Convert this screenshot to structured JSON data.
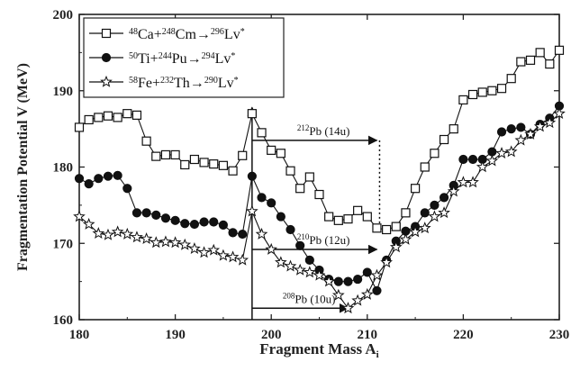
{
  "chart_data": {
    "type": "line",
    "xlabel": "Fragment Mass A",
    "xlabel_sub": "i",
    "ylabel": "Fragmentation Potential V (MeV)",
    "xlim": [
      180,
      230
    ],
    "ylim": [
      160,
      200
    ],
    "xticks": [
      180,
      190,
      200,
      210,
      220,
      230
    ],
    "yticks": [
      160,
      170,
      180,
      190,
      200
    ],
    "grid": false,
    "legend_position": "top-left",
    "series": [
      {
        "name": "48Ca+248Cm→296Lv*",
        "legend": [
          {
            "sup": "48"
          },
          {
            "t": "Ca+"
          },
          {
            "sup": "248"
          },
          {
            "t": "Cm→"
          },
          {
            "sup": "296"
          },
          {
            "t": "Lv"
          },
          {
            "sup": "*"
          }
        ],
        "marker": "open-square",
        "x": [
          180,
          181,
          182,
          183,
          184,
          185,
          186,
          187,
          188,
          189,
          190,
          191,
          192,
          193,
          194,
          195,
          196,
          197,
          198,
          199,
          200,
          201,
          202,
          203,
          204,
          205,
          206,
          207,
          208,
          209,
          210,
          211,
          212,
          213,
          214,
          215,
          216,
          217,
          218,
          219,
          220,
          221,
          222,
          223,
          224,
          225,
          226,
          227,
          228,
          229,
          230
        ],
        "y": [
          185.2,
          186.2,
          186.5,
          186.7,
          186.5,
          187.0,
          186.8,
          183.4,
          181.4,
          181.6,
          181.6,
          180.3,
          181.0,
          180.6,
          180.4,
          180.2,
          179.5,
          181.5,
          187.0,
          184.5,
          182.2,
          181.8,
          179.5,
          177.2,
          178.7,
          176.4,
          173.5,
          173.0,
          173.2,
          174.3,
          173.5,
          172.0,
          171.8,
          172.2,
          174.0,
          177.2,
          180.0,
          181.8,
          183.6,
          185.0,
          188.8,
          189.5,
          189.8,
          190.0,
          190.3,
          191.6,
          193.8,
          194.0,
          195.0,
          193.5,
          195.3
        ]
      },
      {
        "name": "50Ti+244Pu→294Lv*",
        "legend": [
          {
            "sup": "50"
          },
          {
            "t": "Ti+"
          },
          {
            "sup": "244"
          },
          {
            "t": "Pu→"
          },
          {
            "sup": "294"
          },
          {
            "t": "Lv"
          },
          {
            "sup": "*"
          }
        ],
        "marker": "filled-circle",
        "x": [
          180,
          181,
          182,
          183,
          184,
          185,
          186,
          187,
          188,
          189,
          190,
          191,
          192,
          193,
          194,
          195,
          196,
          197,
          198,
          199,
          200,
          201,
          202,
          203,
          204,
          205,
          206,
          207,
          208,
          209,
          210,
          211,
          212,
          213,
          214,
          215,
          216,
          217,
          218,
          219,
          220,
          221,
          222,
          223,
          224,
          225,
          226,
          227,
          228,
          229,
          230
        ],
        "y": [
          178.5,
          177.8,
          178.5,
          178.8,
          178.9,
          177.2,
          174.0,
          174.0,
          173.7,
          173.3,
          173.0,
          172.6,
          172.5,
          172.8,
          172.8,
          172.4,
          171.4,
          171.2,
          178.8,
          176.0,
          175.3,
          173.5,
          171.8,
          169.7,
          167.8,
          166.5,
          165.3,
          165.0,
          165.0,
          165.3,
          166.2,
          163.8,
          167.8,
          170.3,
          171.6,
          172.2,
          174.0,
          175.0,
          176.0,
          177.6,
          181.0,
          181.0,
          181.0,
          182.0,
          184.6,
          185.0,
          185.2,
          184.3,
          185.6,
          186.4,
          188.0
        ]
      },
      {
        "name": "58Fe+232Th→290Lv*",
        "legend": [
          {
            "sup": "58"
          },
          {
            "t": "Fe+"
          },
          {
            "sup": "232"
          },
          {
            "t": "Th→"
          },
          {
            "sup": "290"
          },
          {
            "t": "Lv"
          },
          {
            "sup": "*"
          }
        ],
        "marker": "open-star",
        "x": [
          180,
          181,
          182,
          183,
          184,
          185,
          186,
          187,
          188,
          189,
          190,
          191,
          192,
          193,
          194,
          195,
          196,
          197,
          198,
          199,
          200,
          201,
          202,
          203,
          204,
          205,
          206,
          207,
          208,
          209,
          210,
          211,
          212,
          213,
          214,
          215,
          216,
          217,
          218,
          219,
          220,
          221,
          222,
          223,
          224,
          225,
          226,
          227,
          228,
          229,
          230
        ],
        "y": [
          173.5,
          172.5,
          171.3,
          171.1,
          171.5,
          171.2,
          170.8,
          170.6,
          170.1,
          170.2,
          170.1,
          169.8,
          169.3,
          168.8,
          169.1,
          168.4,
          168.2,
          167.8,
          174.2,
          171.2,
          169.2,
          167.5,
          167.0,
          166.5,
          166.2,
          165.8,
          165.0,
          163.2,
          161.5,
          162.5,
          163.3,
          165.8,
          167.5,
          169.5,
          170.5,
          171.5,
          172.0,
          173.5,
          174.0,
          176.8,
          178.0,
          178.0,
          180.0,
          180.8,
          181.8,
          182.0,
          183.5,
          184.3,
          185.3,
          185.8,
          187.0
        ]
      }
    ],
    "annotations": [
      {
        "label_sup": "212",
        "label": "Pb (14u)",
        "y": 183.5,
        "x_from": 198,
        "x_to": 211,
        "dotted_to": 172
      },
      {
        "label_sup": "210",
        "label": "Pb (12u)",
        "y": 169.2,
        "x_from": 198,
        "x_to": 211
      },
      {
        "label_sup": "208",
        "label": "Pb (10u)",
        "y": 161.5,
        "x_from": 198,
        "x_to": 208
      }
    ],
    "vertical_arrow": {
      "x": 198,
      "y_from": 160,
      "y_to": 187.8
    }
  }
}
